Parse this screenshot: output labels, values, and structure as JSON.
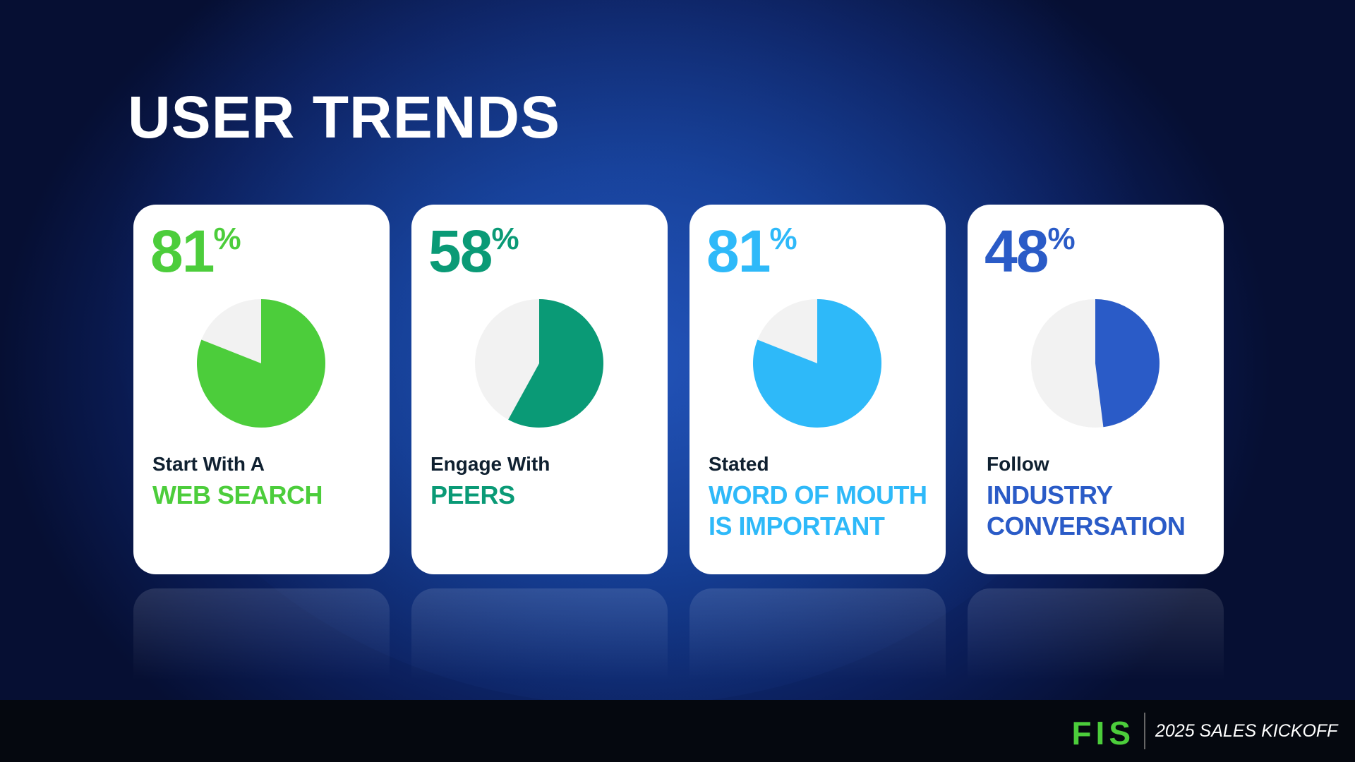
{
  "title": "USER TRENDS",
  "chart_data": [
    {
      "type": "pie",
      "values": [
        81
      ],
      "value_labels": [
        "81%"
      ],
      "color": "#4ccd3b",
      "subtitle": "Start With A",
      "caption": "WEB SEARCH"
    },
    {
      "type": "pie",
      "values": [
        58
      ],
      "value_labels": [
        "58%"
      ],
      "color": "#0a9a76",
      "subtitle": "Engage With",
      "caption": "PEERS"
    },
    {
      "type": "pie",
      "values": [
        81
      ],
      "value_labels": [
        "81%"
      ],
      "color": "#2eb9f9",
      "subtitle": "Stated",
      "caption": "WORD OF MOUTH IS IMPORTANT"
    },
    {
      "type": "pie",
      "values": [
        48
      ],
      "value_labels": [
        "48%"
      ],
      "color": "#2a5bc7",
      "subtitle": "Follow",
      "caption": "INDUSTRY CONVERSATION"
    }
  ],
  "footer": {
    "logo": "FIS",
    "event": "2025 SALES KICKOFF"
  }
}
